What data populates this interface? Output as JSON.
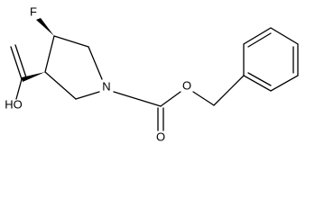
{
  "atoms": [
    {
      "label": "F"
    },
    {
      "label": "HO"
    },
    {
      "label": "N"
    },
    {
      "label": "O"
    },
    {
      "label": "O"
    }
  ]
}
